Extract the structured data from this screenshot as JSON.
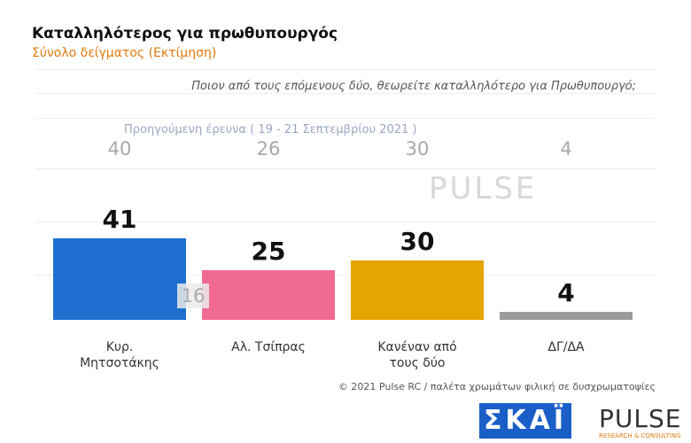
{
  "header": {
    "title": "Καταλληλότερος για πρωθυπουργός",
    "subtitle": "Σύνολο δείγματος (Εκτίμηση)"
  },
  "chart_data": {
    "type": "bar",
    "question": "Ποιον από τους επόμενους δύο, θεωρείτε καταλληλότερο για Πρωθυπουργό;",
    "previous_label": "Προηγούμενη έρευνα ( 19 - 21 Σεπτεμβρίου 2021 )",
    "categories": [
      "Κυρ. Μητσοτάκης",
      "Αλ. Τσίπρας",
      "Κανέναν από τους δύο",
      "ΔΓ/ΔΑ"
    ],
    "values": [
      41,
      25,
      30,
      4
    ],
    "previous_values": [
      40,
      26,
      30,
      4
    ],
    "colors": [
      "#1f6fd0",
      "#f06a93",
      "#e5a500",
      "#9a9a9a"
    ],
    "difference": 16
  },
  "footer": {
    "credit": "© 2021 Pulse RC  /  παλέτα χρωμάτων φιλική σε δυσχρωματοψίες",
    "skai_logo": "ΣΚΑΪ",
    "pulse_logo": "PULSE",
    "pulse_tagline": "RESEARCH & CONSULTING"
  }
}
